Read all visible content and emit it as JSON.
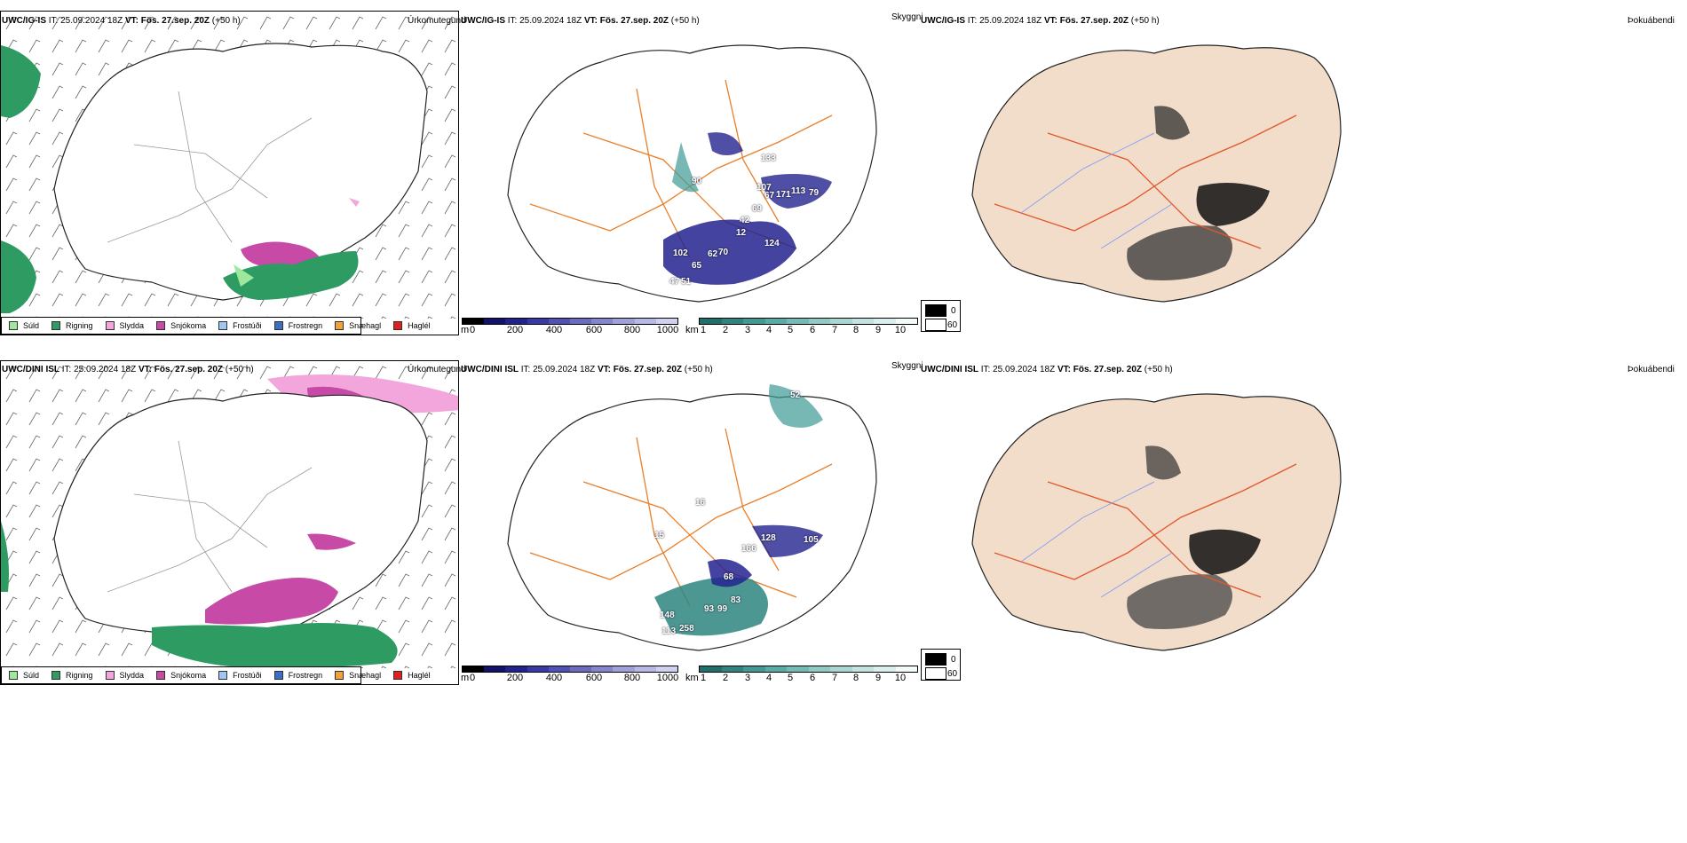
{
  "rows": [
    {
      "model": "UWC/IG-IS",
      "it_label": "IT: 25.09.2024 18Z",
      "vt_label": "VT: Fös. 27.sep. 20Z",
      "lead": "(+50 h)",
      "cloud_numbers": [
        "79",
        "133",
        "90",
        "107",
        "67",
        "171",
        "113",
        "69",
        "42",
        "12",
        "124",
        "102",
        "62",
        "70",
        "65",
        "47",
        "51"
      ]
    },
    {
      "model": "UWC/DINI ISL",
      "it_label": "IT: 25.09.2024 18Z",
      "vt_label": "VT: Fös. 27.sep. 20Z",
      "lead": "(+50 h)",
      "cloud_numbers": [
        "52",
        "15",
        "16",
        "166",
        "128",
        "105",
        "68",
        "93",
        "99",
        "83",
        "148",
        "258",
        "113"
      ]
    }
  ],
  "panels": {
    "precip_title": "Úrkomutegund",
    "cloud_title": "Skyggni",
    "fog_title": "Þokuábendi"
  },
  "precip_legend": [
    {
      "label": "Súld",
      "color": "#9de89d"
    },
    {
      "label": "Rigning",
      "color": "#2e9b62"
    },
    {
      "label": "Slydda",
      "color": "#f2a6dc"
    },
    {
      "label": "Snjókoma",
      "color": "#c64aa6"
    },
    {
      "label": "Frostúði",
      "color": "#9ec8f2"
    },
    {
      "label": "Frostregn",
      "color": "#3a6fc4"
    },
    {
      "label": "Snæhagl",
      "color": "#f2a23a"
    },
    {
      "label": "Haglél",
      "color": "#e02020"
    }
  ],
  "scale_m": {
    "unit": "m",
    "ticks": [
      "0",
      "200",
      "400",
      "600",
      "800",
      "1000"
    ],
    "colors": [
      "#000000",
      "#12126e",
      "#23238f",
      "#3838a6",
      "#5050b6",
      "#6b6bc2",
      "#8585cf",
      "#a0a0da",
      "#b8b8e6",
      "#d0d0f0"
    ]
  },
  "scale_km": {
    "unit": "km",
    "ticks": [
      "1",
      "2",
      "3",
      "4",
      "5",
      "6",
      "7",
      "8",
      "9",
      "10"
    ],
    "colors": [
      "#1f6f6a",
      "#2e8580",
      "#3f9a94",
      "#58aca6",
      "#73bcb6",
      "#8fcac5",
      "#a8d6d2",
      "#c2e3e0",
      "#d9efed",
      "#f3fbfa"
    ]
  },
  "fog_legend": [
    {
      "label": "0",
      "color": "#000000"
    },
    {
      "label": "60",
      "color": "#ffffff"
    }
  ]
}
